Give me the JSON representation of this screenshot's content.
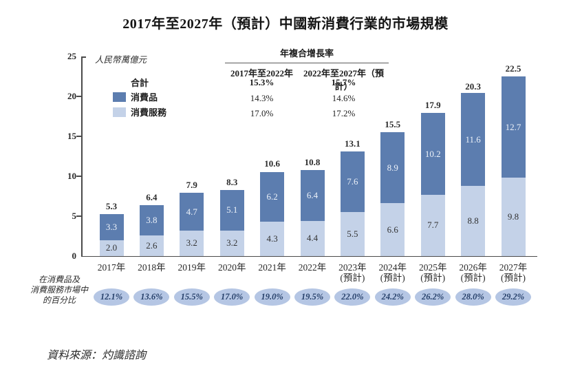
{
  "page": {
    "title": "2017年至2027年（預計）中國新消費行業的市場規模",
    "source": "資料來源：灼識諮詢"
  },
  "chart_data": {
    "type": "bar",
    "stacked": true,
    "title": "2017年至2027年（預計）中國新消費行業的市場規模",
    "unit_label": "人民幣萬億元",
    "ylim": [
      0,
      25
    ],
    "yticks": [
      0,
      5,
      10,
      15,
      20,
      25
    ],
    "grid": false,
    "categories": [
      "2017年",
      "2018年",
      "2019年",
      "2020年",
      "2021年",
      "2022年",
      "2023年",
      "2024年",
      "2025年",
      "2026年",
      "2027年"
    ],
    "category_sublabels": [
      "",
      "",
      "",
      "",
      "",
      "",
      "(預計)",
      "(預計)",
      "(預計)",
      "(預計)",
      "(預計)"
    ],
    "series": [
      {
        "name": "消費品",
        "color": "#5C7DAF",
        "values": [
          3.3,
          3.8,
          4.7,
          5.1,
          6.2,
          6.4,
          7.6,
          8.9,
          10.2,
          11.6,
          12.7
        ]
      },
      {
        "name": "消費服務",
        "color": "#C4D2E8",
        "values": [
          2.0,
          2.6,
          3.2,
          3.2,
          4.3,
          4.4,
          5.5,
          6.6,
          7.7,
          8.8,
          9.8
        ]
      }
    ],
    "totals": [
      5.3,
      6.4,
      7.9,
      8.3,
      10.6,
      10.8,
      13.1,
      15.5,
      17.9,
      20.3,
      22.5
    ],
    "cagr": {
      "title": "年複合增長率",
      "periods": [
        "2017年至2022年",
        "2022年至2027年（預計）"
      ],
      "rows": [
        {
          "label": "合計",
          "values": [
            "15.3%",
            "15.7%"
          ],
          "bold": true
        },
        {
          "label": "消費品",
          "values": [
            "14.3%",
            "14.6%"
          ],
          "bold": false
        },
        {
          "label": "消費服務",
          "values": [
            "17.0%",
            "17.2%"
          ],
          "bold": false
        }
      ]
    },
    "share": {
      "caption_lines": [
        "在消費品及",
        "消費服務市場中",
        "的百分比"
      ],
      "values": [
        "12.1%",
        "13.6%",
        "15.5%",
        "17.0%",
        "19.0%",
        "19.5%",
        "22.0%",
        "24.2%",
        "26.2%",
        "28.0%",
        "29.2%"
      ]
    },
    "colors": {
      "goods": "#5C7DAF",
      "services": "#C4D2E8",
      "ellipse_fill": "#B5C6E4",
      "ellipse_text": "#27416B",
      "axis": "#4a4a4a",
      "segment_label_on_dark": "#EDF2F9",
      "segment_label_on_light": "#333333"
    },
    "legend_position": "upper-left"
  }
}
